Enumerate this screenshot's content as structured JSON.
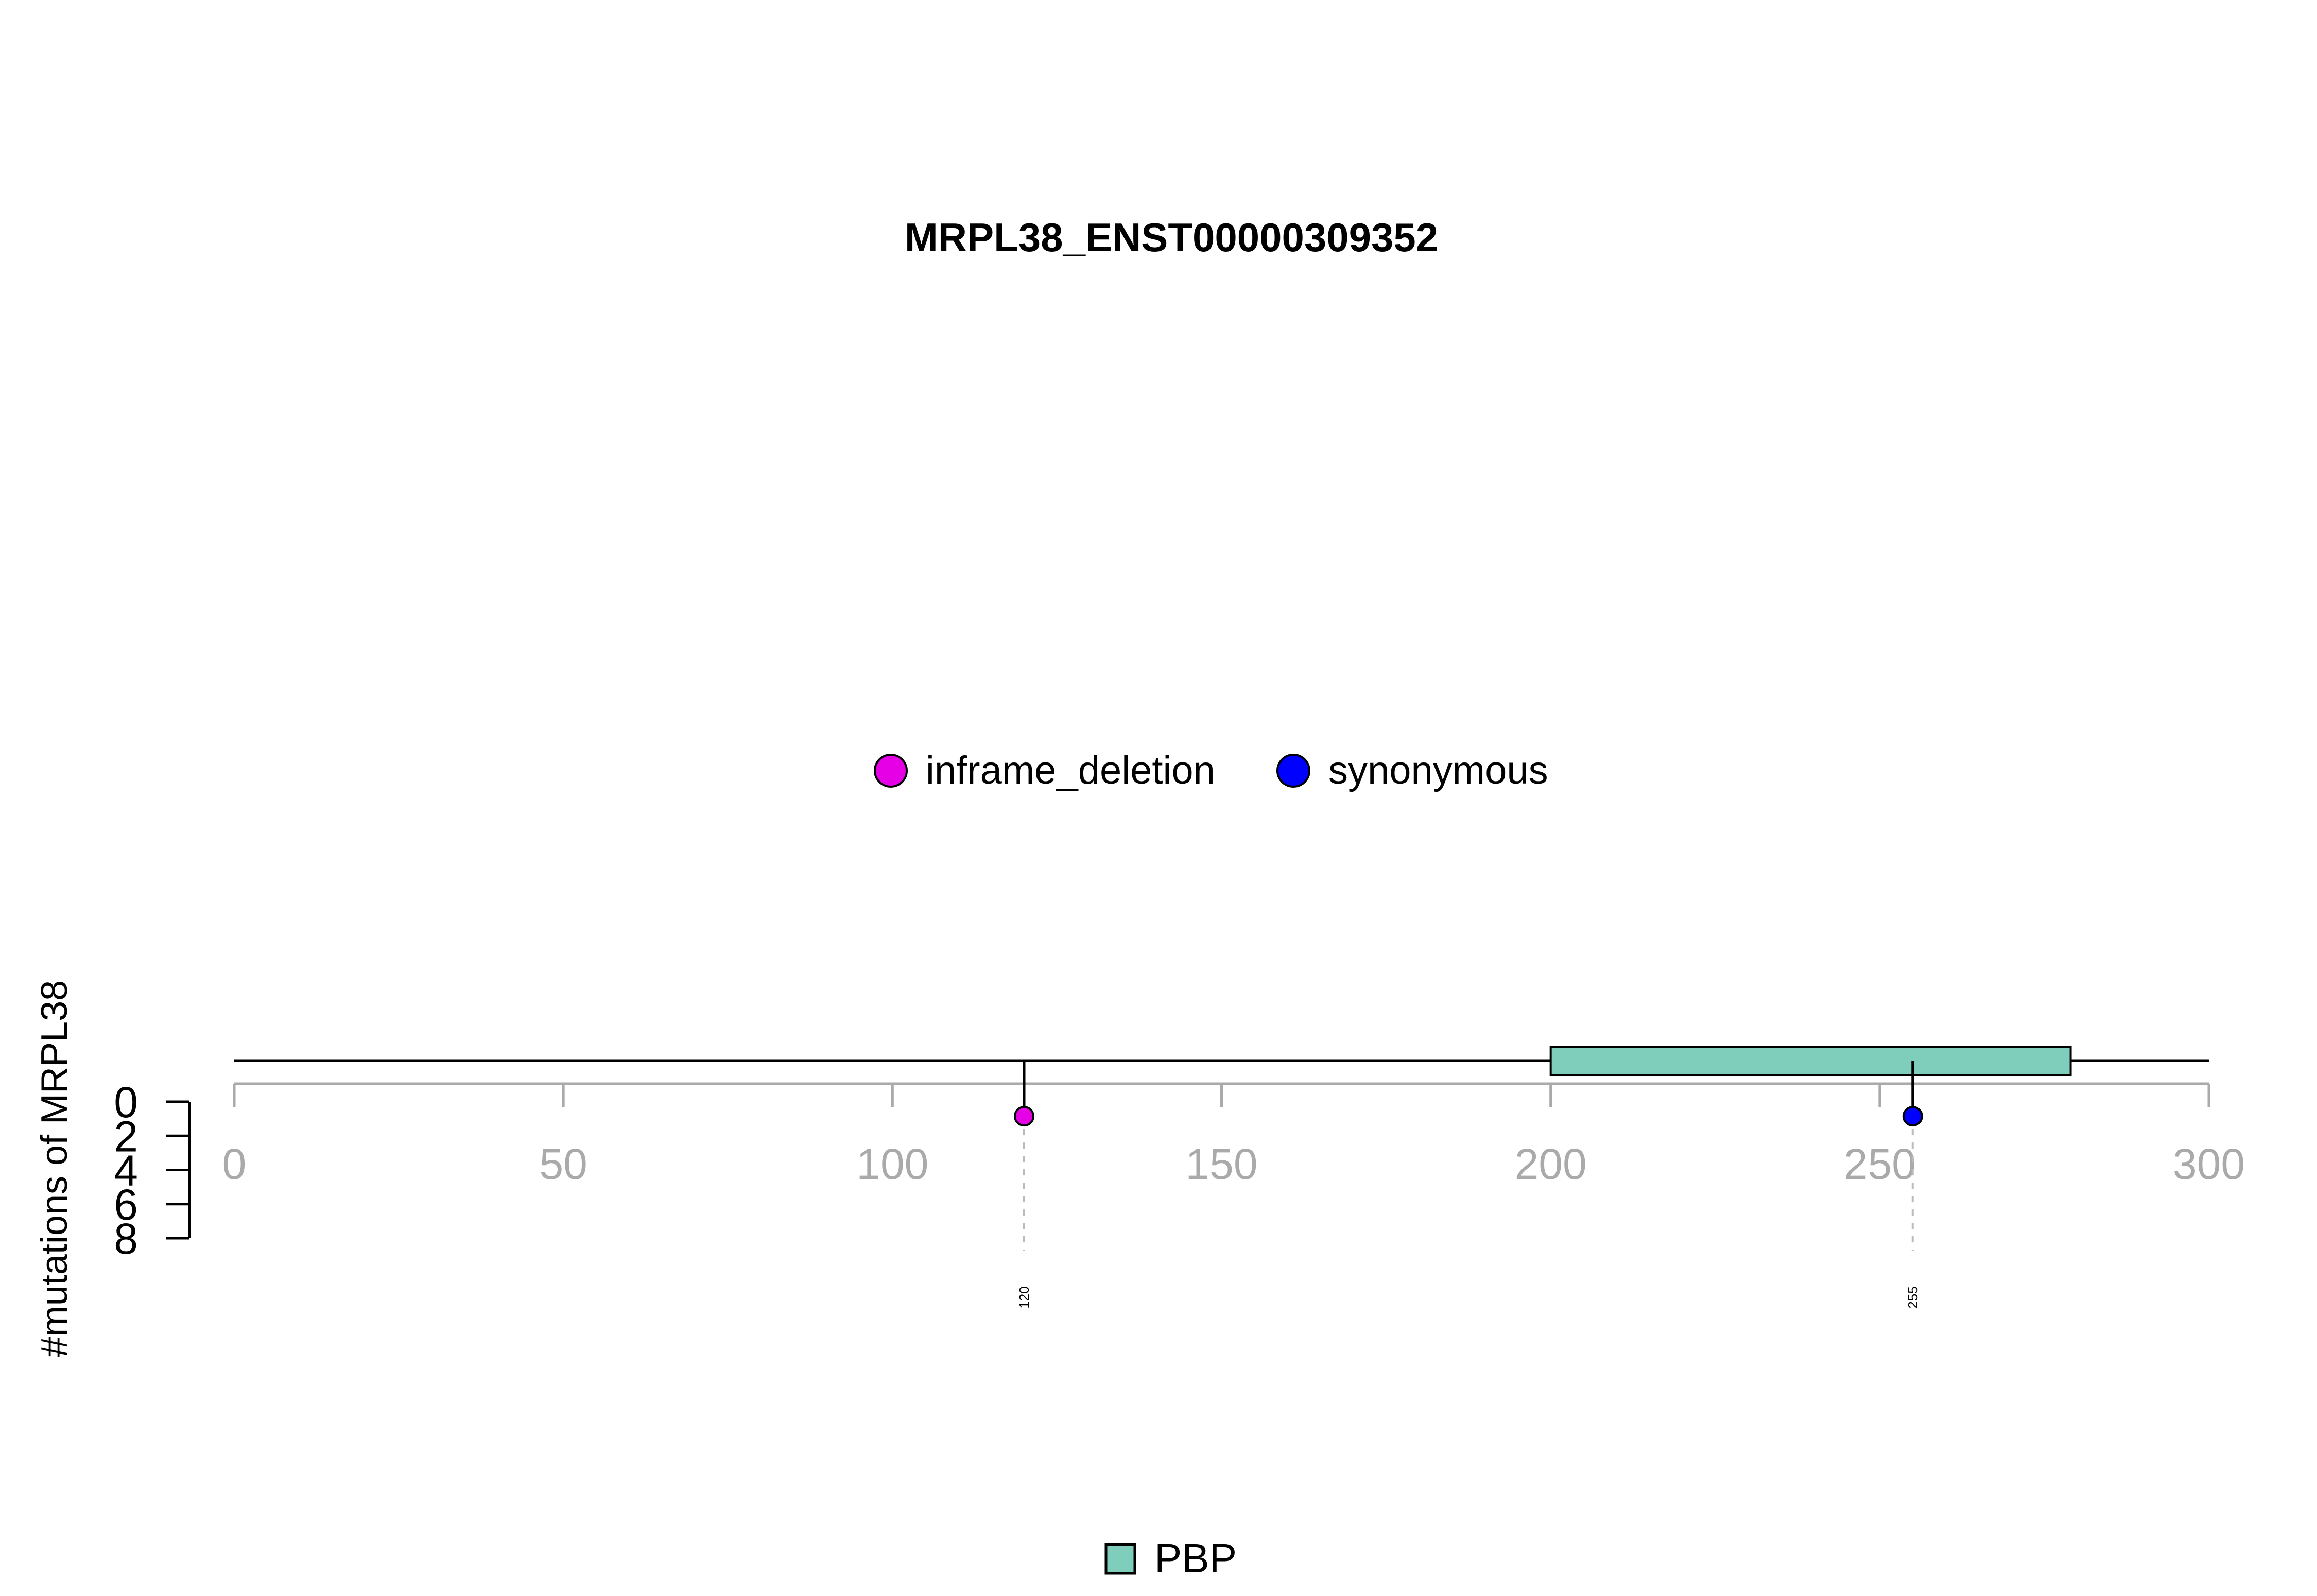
{
  "chart_data": {
    "type": "lollipop",
    "title": "MRPL38_ENST00000309352",
    "ylabel": "#mutations of MRPL38",
    "xlim": [
      0,
      300
    ],
    "x_ticks": [
      0,
      50,
      100,
      150,
      200,
      250,
      300
    ],
    "ylim": [
      0,
      8
    ],
    "y_ticks": [
      0,
      2,
      4,
      6,
      8
    ],
    "protein_length": 300,
    "legend": [
      {
        "label": "inframe_deletion",
        "color": "#E600E6"
      },
      {
        "label": "synonymous",
        "color": "#0000FF"
      }
    ],
    "mutations": [
      {
        "position": 120,
        "count": 1,
        "type": "inframe_deletion",
        "label": "120"
      },
      {
        "position": 255,
        "count": 1,
        "type": "synonymous",
        "label": "255"
      }
    ],
    "domains": [
      {
        "name": "PBP",
        "start": 200,
        "end": 279,
        "color": "#7FCDBB"
      }
    ],
    "domain_legend": [
      {
        "label": "PBP",
        "color": "#7FCDBB"
      }
    ]
  }
}
